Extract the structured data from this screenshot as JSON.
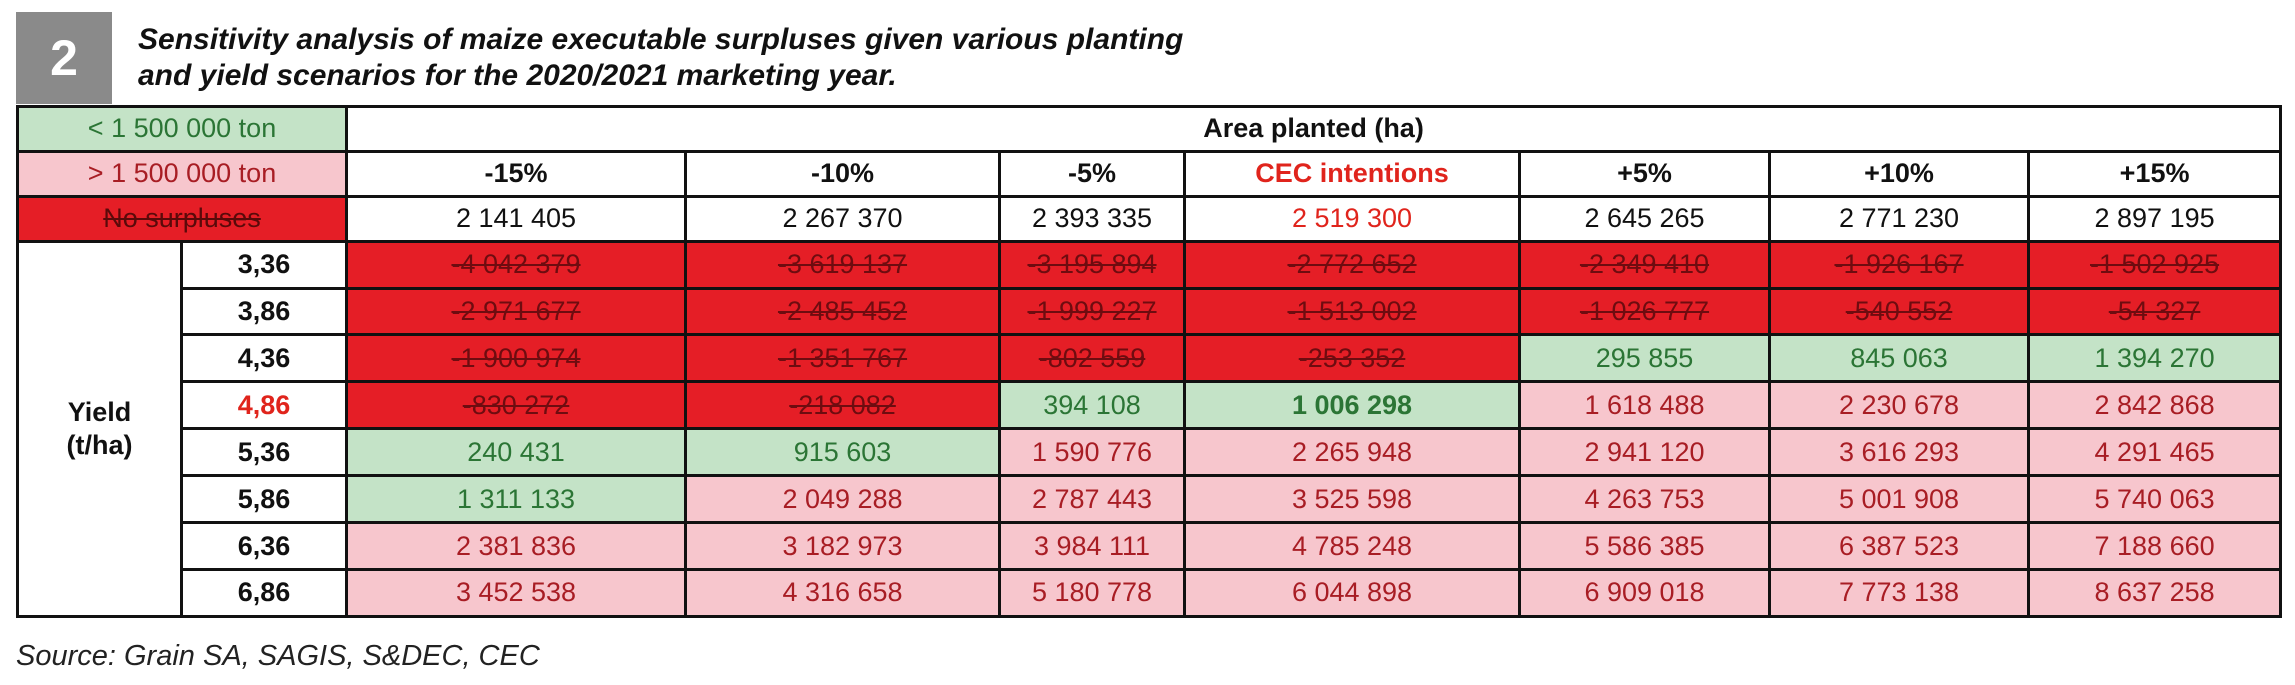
{
  "header": {
    "figure_number": "2",
    "title": "Sensitivity analysis of maize executable surpluses given various planting\nand yield scenarios for the 2020/2021 marketing year."
  },
  "legend": {
    "green": "< 1 500 000 ton",
    "pink": "> 1 500 000 ton",
    "red": "No surpluses"
  },
  "table": {
    "area_title": "Area planted (ha)",
    "yield_label": "Yield\n(t/ha)",
    "columns": [
      {
        "label": "-15%",
        "area": "2 141 405"
      },
      {
        "label": "-10%",
        "area": "2 267 370"
      },
      {
        "label": "-5%",
        "area": "2 393 335"
      },
      {
        "label": "CEC intentions",
        "area": "2 519 300"
      },
      {
        "label": "+5%",
        "area": "2 645 265"
      },
      {
        "label": "+10%",
        "area": "2 771 230"
      },
      {
        "label": "+15%",
        "area": "2 897 195"
      }
    ],
    "rows": [
      {
        "yield": "3,36",
        "values": [
          "-4 042 379",
          "-3 619 137",
          "-3 195 894",
          "-2 772 652",
          "-2 349 410",
          "-1 926 167",
          "-1 502 925"
        ]
      },
      {
        "yield": "3,86",
        "values": [
          "-2 971 677",
          "-2 485 452",
          "-1 999 227",
          "-1 513 002",
          "-1 026 777",
          "-540 552",
          "-54 327"
        ]
      },
      {
        "yield": "4,36",
        "values": [
          "-1 900 974",
          "-1 351 767",
          "-802 559",
          "-253 352",
          "295 855",
          "845 063",
          "1 394 270"
        ]
      },
      {
        "yield": "4,86",
        "values": [
          "-830 272",
          "-218 082",
          "394 108",
          "1 006 298",
          "1 618 488",
          "2 230 678",
          "2 842 868"
        ]
      },
      {
        "yield": "5,36",
        "values": [
          "240 431",
          "915 603",
          "1 590 776",
          "2 265 948",
          "2 941 120",
          "3 616 293",
          "4 291 465"
        ]
      },
      {
        "yield": "5,86",
        "values": [
          "1 311 133",
          "2 049 288",
          "2 787 443",
          "3 525 598",
          "4 263 753",
          "5 001 908",
          "5 740 063"
        ]
      },
      {
        "yield": "6,36",
        "values": [
          "2 381 836",
          "3 182 973",
          "3 984 111",
          "4 785 248",
          "5 586 385",
          "6 387 523",
          "7 188 660"
        ]
      },
      {
        "yield": "6,86",
        "values": [
          "3 452 538",
          "4 316 658",
          "5 180 778",
          "6 044 898",
          "6 909 018",
          "7 773 138",
          "8 637 258"
        ]
      }
    ]
  },
  "colors": {
    "green_fill": "#c4e3c7",
    "pink_fill": "#f7c6cd",
    "red_fill": "#e51e26",
    "highlight_text": "#e0241c"
  },
  "source": "Source: Grain SA, SAGIS, S&DEC, CEC"
}
